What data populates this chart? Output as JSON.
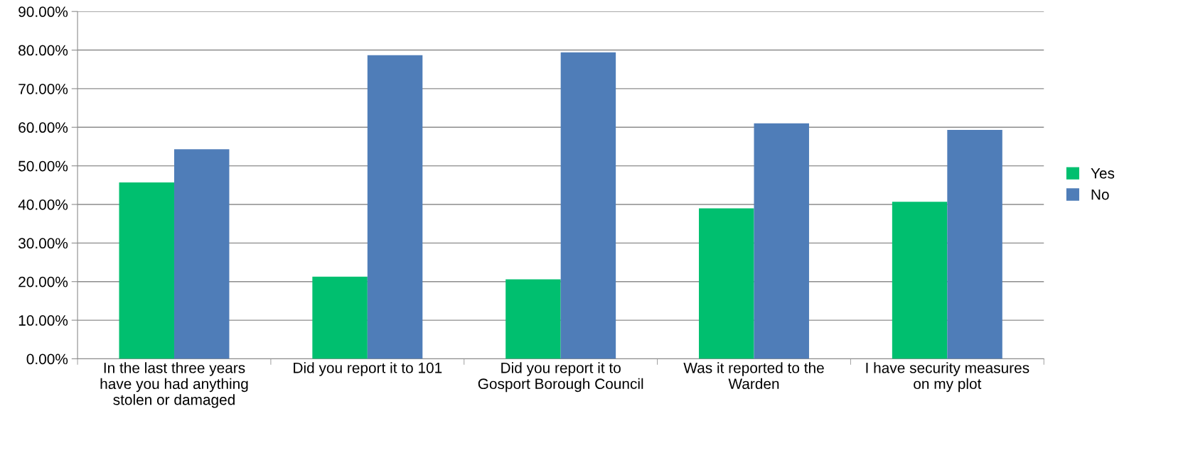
{
  "chart_data": {
    "type": "bar",
    "categories": [
      "In the last three years\nhave you had anything\nstolen or damaged",
      "Did you report it to 101",
      "Did you report it to\nGosport Borough Council",
      "Was it reported to the\nWarden",
      "I have security measures\non my plot"
    ],
    "series": [
      {
        "name": "Yes",
        "color": "#00bf6f",
        "values": [
          45.7,
          21.3,
          20.6,
          39.0,
          40.7
        ]
      },
      {
        "name": "No",
        "color": "#4f7db8",
        "values": [
          54.3,
          78.7,
          79.4,
          61.0,
          59.3
        ]
      }
    ],
    "ylim": [
      0,
      90
    ],
    "yticks": [
      {
        "value": 0,
        "label": "0.00%"
      },
      {
        "value": 10,
        "label": "10.00%"
      },
      {
        "value": 20,
        "label": "20.00%"
      },
      {
        "value": 30,
        "label": "30.00%"
      },
      {
        "value": 40,
        "label": "40.00%"
      },
      {
        "value": 50,
        "label": "50.00%"
      },
      {
        "value": 60,
        "label": "60.00%"
      },
      {
        "value": 70,
        "label": "70.00%"
      },
      {
        "value": 80,
        "label": "80.00%"
      },
      {
        "value": 90,
        "label": "90.00%"
      }
    ],
    "grid": "y",
    "legend": "right"
  }
}
